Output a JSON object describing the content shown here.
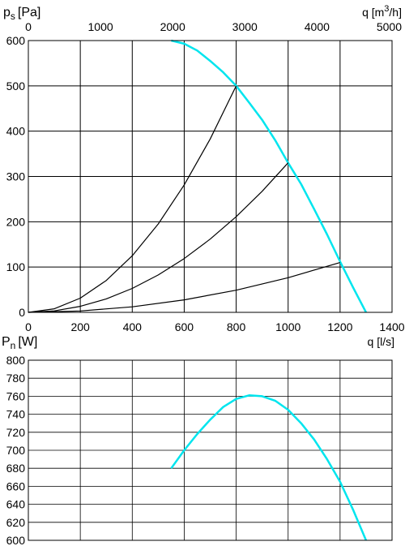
{
  "chart_data": [
    {
      "type": "line",
      "ylabel": "p",
      "ylabel_sub": "s",
      "ylabel_unit": "[Pa]",
      "x2label": "q [m",
      "x2label_sup": "3",
      "x2label_tail": "/h]",
      "xlabel": "q [l/s]",
      "xlim": [
        0,
        1400
      ],
      "ylim": [
        0,
        600
      ],
      "x_ticks": [
        "0",
        "200",
        "400",
        "600",
        "800",
        "1000",
        "1200",
        "1400"
      ],
      "y_ticks": [
        "0",
        "100",
        "200",
        "300",
        "400",
        "500",
        "600"
      ],
      "x2_ticks": [
        "0",
        "1000",
        "2000",
        "3000",
        "4000",
        "5000"
      ],
      "grid": true,
      "series": [
        {
          "color": "#00e5ee",
          "x": [
            550,
            600,
            650,
            700,
            750,
            800,
            850,
            900,
            950,
            1000,
            1050,
            1100,
            1150,
            1200,
            1250,
            1300
          ],
          "y": [
            600,
            593,
            578,
            555,
            530,
            500,
            463,
            425,
            380,
            330,
            283,
            228,
            172,
            112,
            55,
            0
          ]
        },
        {
          "color": "#000000",
          "x": [
            0,
            100,
            200,
            300,
            400,
            500,
            600,
            700,
            800
          ],
          "y": [
            0,
            7.8,
            31.3,
            70.3,
            125,
            195.3,
            281.3,
            382.8,
            500
          ]
        },
        {
          "color": "#000000",
          "x": [
            0,
            100,
            200,
            300,
            400,
            500,
            600,
            700,
            800,
            900,
            1000
          ],
          "y": [
            0,
            3.3,
            13.2,
            29.7,
            52.8,
            82.5,
            118.8,
            161.7,
            211.2,
            267.3,
            330
          ]
        },
        {
          "color": "#000000",
          "x": [
            0,
            200,
            400,
            600,
            800,
            1000,
            1200
          ],
          "y": [
            0,
            3.1,
            12.2,
            27.5,
            48.9,
            76.4,
            110
          ]
        }
      ]
    },
    {
      "type": "line",
      "ylabel": "P",
      "ylabel_sub": "n",
      "ylabel_unit": "[W]",
      "xlim": [
        0,
        1400
      ],
      "ylim": [
        600,
        800
      ],
      "y_ticks": [
        "600",
        "620",
        "640",
        "660",
        "680",
        "700",
        "720",
        "740",
        "760",
        "780",
        "800"
      ],
      "grid": true,
      "series": [
        {
          "color": "#00e5ee",
          "x": [
            550,
            600,
            650,
            700,
            750,
            800,
            850,
            900,
            950,
            1000,
            1050,
            1100,
            1150,
            1200,
            1250,
            1300
          ],
          "y": [
            680,
            700,
            718,
            734,
            748,
            757,
            761,
            760,
            755,
            745,
            730,
            712,
            690,
            665,
            634,
            600
          ]
        }
      ]
    }
  ]
}
